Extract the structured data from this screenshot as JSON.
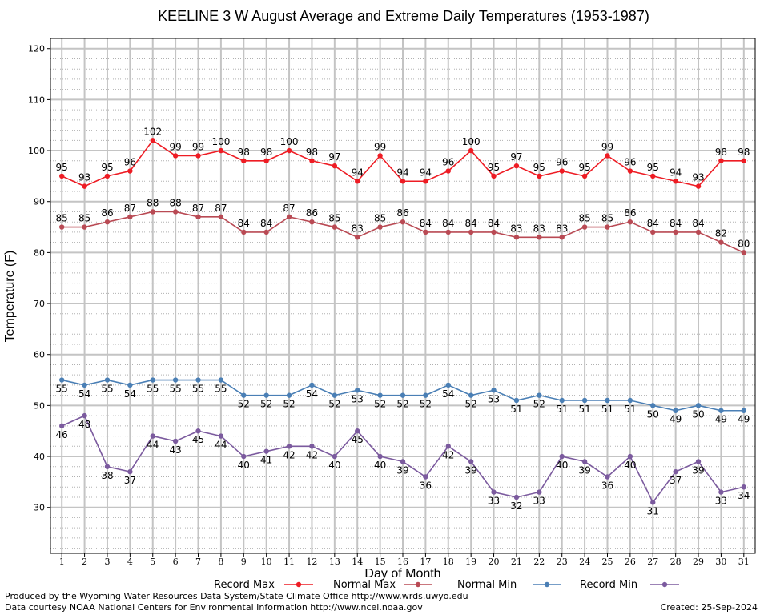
{
  "chart_data": {
    "type": "line",
    "title": "KEELINE 3 W August Average and Extreme Daily Temperatures (1953-1987)",
    "xlabel": "Day of Month",
    "ylabel": "Temperature (F)",
    "xlim": [
      0.5,
      31.5
    ],
    "ylim": [
      21,
      122
    ],
    "yticks": [
      30,
      40,
      50,
      60,
      70,
      80,
      90,
      100,
      110,
      120
    ],
    "x": [
      1,
      2,
      3,
      4,
      5,
      6,
      7,
      8,
      9,
      10,
      11,
      12,
      13,
      14,
      15,
      16,
      17,
      18,
      19,
      20,
      21,
      22,
      23,
      24,
      25,
      26,
      27,
      28,
      29,
      30,
      31
    ],
    "grid": true,
    "legend_position": "bottom",
    "series": [
      {
        "name": "Record Max",
        "color": "#ee1c24",
        "label_pos": "above",
        "values": [
          95,
          93,
          95,
          96,
          102,
          99,
          99,
          100,
          98,
          98,
          100,
          98,
          97,
          94,
          99,
          94,
          94,
          96,
          100,
          95,
          97,
          95,
          96,
          95,
          99,
          96,
          95,
          94,
          93,
          98,
          98
        ]
      },
      {
        "name": "Normal Max",
        "color": "#b94a54",
        "label_pos": "above",
        "values": [
          85,
          85,
          86,
          87,
          88,
          88,
          87,
          87,
          84,
          84,
          87,
          86,
          85,
          83,
          85,
          86,
          84,
          84,
          84,
          84,
          83,
          83,
          83,
          85,
          85,
          86,
          84,
          84,
          84,
          82,
          80
        ]
      },
      {
        "name": "Normal Min",
        "color": "#4a7fb5",
        "label_pos": "below",
        "values": [
          55,
          54,
          55,
          54,
          55,
          55,
          55,
          55,
          52,
          52,
          52,
          54,
          52,
          53,
          52,
          52,
          52,
          54,
          52,
          53,
          51,
          52,
          51,
          51,
          51,
          51,
          50,
          49,
          50,
          49,
          49
        ]
      },
      {
        "name": "Record Min",
        "color": "#7b5a9e",
        "label_pos": "below",
        "values": [
          46,
          48,
          38,
          37,
          44,
          43,
          45,
          44,
          40,
          41,
          42,
          42,
          40,
          45,
          40,
          39,
          36,
          42,
          39,
          33,
          32,
          33,
          40,
          39,
          36,
          40,
          31,
          37,
          39,
          33,
          34
        ]
      }
    ]
  },
  "footer": {
    "produced_by": "Produced by the Wyoming Water Resources Data System/State Climate Office http://www.wrds.uwyo.edu",
    "data_courtesy": "Data courtesy NOAA National Centers for Environmental Information http://www.ncei.noaa.gov",
    "created": "Created:  25-Sep-2024"
  }
}
